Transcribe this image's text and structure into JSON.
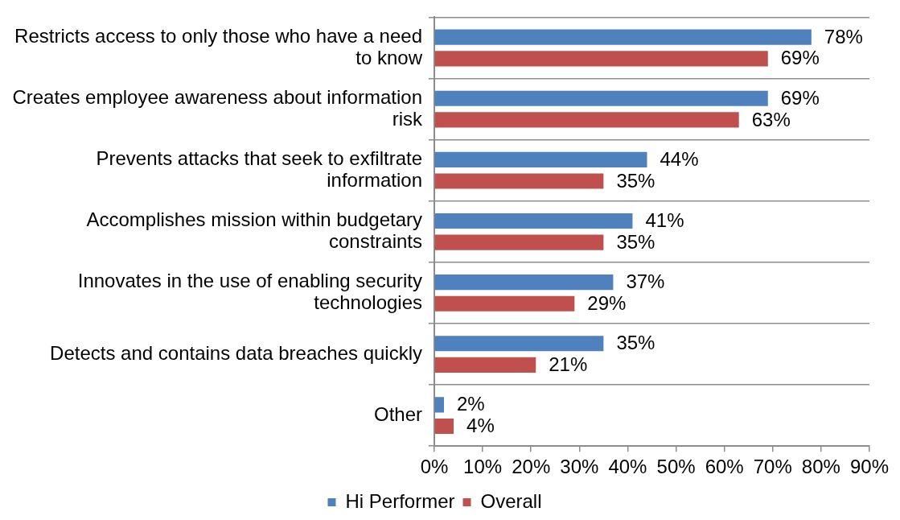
{
  "chart_data": {
    "type": "bar",
    "orientation": "horizontal",
    "categories": [
      "Restricts access to only those who have a need to know",
      "Creates employee awareness about information risk",
      "Prevents attacks that seek to exfiltrate information",
      "Accomplishes mission within budgetary constraints",
      "Innovates in the use of enabling security technologies",
      "Detects and contains data breaches quickly",
      "Other"
    ],
    "series": [
      {
        "name": "Hi Performer",
        "color": "#4f81bd",
        "values": [
          78,
          69,
          44,
          41,
          37,
          35,
          2
        ],
        "value_labels": [
          "78%",
          "69%",
          "44%",
          "41%",
          "37%",
          "35%",
          "2%"
        ]
      },
      {
        "name": "Overall",
        "color": "#c0504d",
        "values": [
          69,
          63,
          35,
          35,
          29,
          21,
          4
        ],
        "value_labels": [
          "69%",
          "63%",
          "35%",
          "35%",
          "29%",
          "21%",
          "4%"
        ]
      }
    ],
    "xlim": [
      0,
      90
    ],
    "xticks": [
      {
        "value": 0,
        "label": "0%"
      },
      {
        "value": 10,
        "label": "10%"
      },
      {
        "value": 20,
        "label": "20%"
      },
      {
        "value": 30,
        "label": "30%"
      },
      {
        "value": 40,
        "label": "40%"
      },
      {
        "value": 50,
        "label": "50%"
      },
      {
        "value": 60,
        "label": "60%"
      },
      {
        "value": 70,
        "label": "70%"
      },
      {
        "value": 80,
        "label": "80%"
      },
      {
        "value": 90,
        "label": "90%"
      }
    ],
    "grid": "y",
    "legend": "bottom"
  }
}
